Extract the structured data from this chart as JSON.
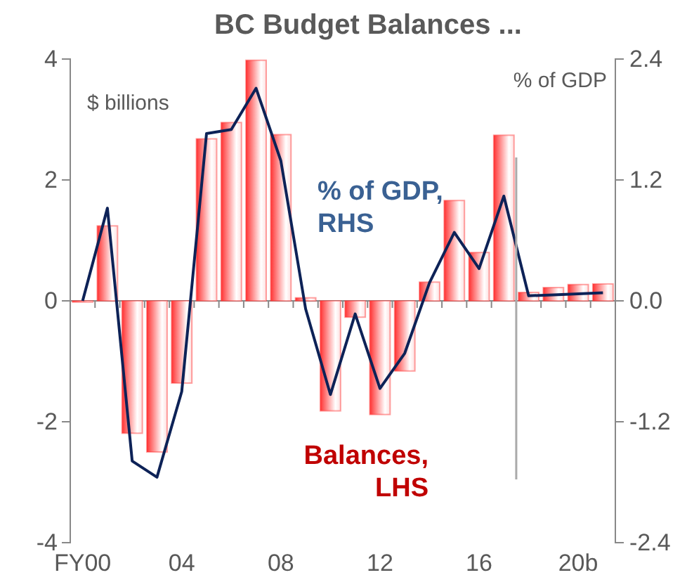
{
  "chart_data": {
    "type": "bar",
    "title": "BC Budget Balances ...",
    "ylabel": "$ billions",
    "y2label": "% of GDP",
    "categories": [
      "FY00",
      null,
      null,
      null,
      "04",
      null,
      null,
      null,
      "08",
      null,
      null,
      null,
      "12",
      null,
      null,
      null,
      "16",
      null,
      null,
      null,
      "20b",
      null
    ],
    "series": [
      {
        "name": "Balances, LHS",
        "color": "#ff3333",
        "values": [
          -0.02,
          1.24,
          -2.19,
          -2.5,
          -1.36,
          2.68,
          2.95,
          3.98,
          2.75,
          0.05,
          -1.82,
          -0.27,
          -1.88,
          -1.16,
          0.31,
          1.66,
          0.8,
          2.74,
          0.14,
          0.22,
          0.27,
          0.28
        ]
      },
      {
        "name": "% of GDP, RHS",
        "type": "line",
        "axis": "y2",
        "color": "#0d2257",
        "values": [
          0.0,
          0.92,
          -1.59,
          -1.75,
          -0.9,
          1.66,
          1.7,
          2.11,
          1.39,
          -0.08,
          -0.93,
          -0.13,
          -0.87,
          -0.52,
          0.18,
          0.68,
          0.32,
          1.04,
          0.05,
          0.06,
          0.07,
          0.08
        ]
      }
    ],
    "ylim": [
      -4,
      4
    ],
    "yticks": [
      -4,
      -2,
      0,
      2,
      4
    ],
    "y2lim": [
      -2.4,
      2.4
    ],
    "y2ticks": [
      {
        "value": -2.4,
        "label": "-2.4"
      },
      {
        "value": -1.2,
        "label": "-1.2"
      },
      {
        "value": 0,
        "label": "0.0"
      },
      {
        "value": 1.2,
        "label": "1.2"
      },
      {
        "value": 2.4,
        "label": "2.4"
      }
    ],
    "legend": false
  }
}
